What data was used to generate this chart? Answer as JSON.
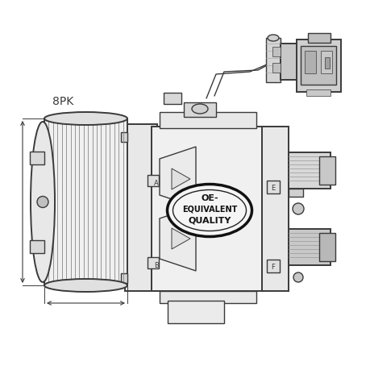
{
  "bg_color": "#ffffff",
  "line_color": "#3a3a3a",
  "lw": 1.0,
  "lw2": 1.4,
  "label_8pk": "8PK",
  "oe_line1": "OE-",
  "oe_line2": "EQUIVALENT",
  "oe_line3": "QUALITY",
  "figsize": [
    4.6,
    4.6
  ],
  "dpi": 100
}
